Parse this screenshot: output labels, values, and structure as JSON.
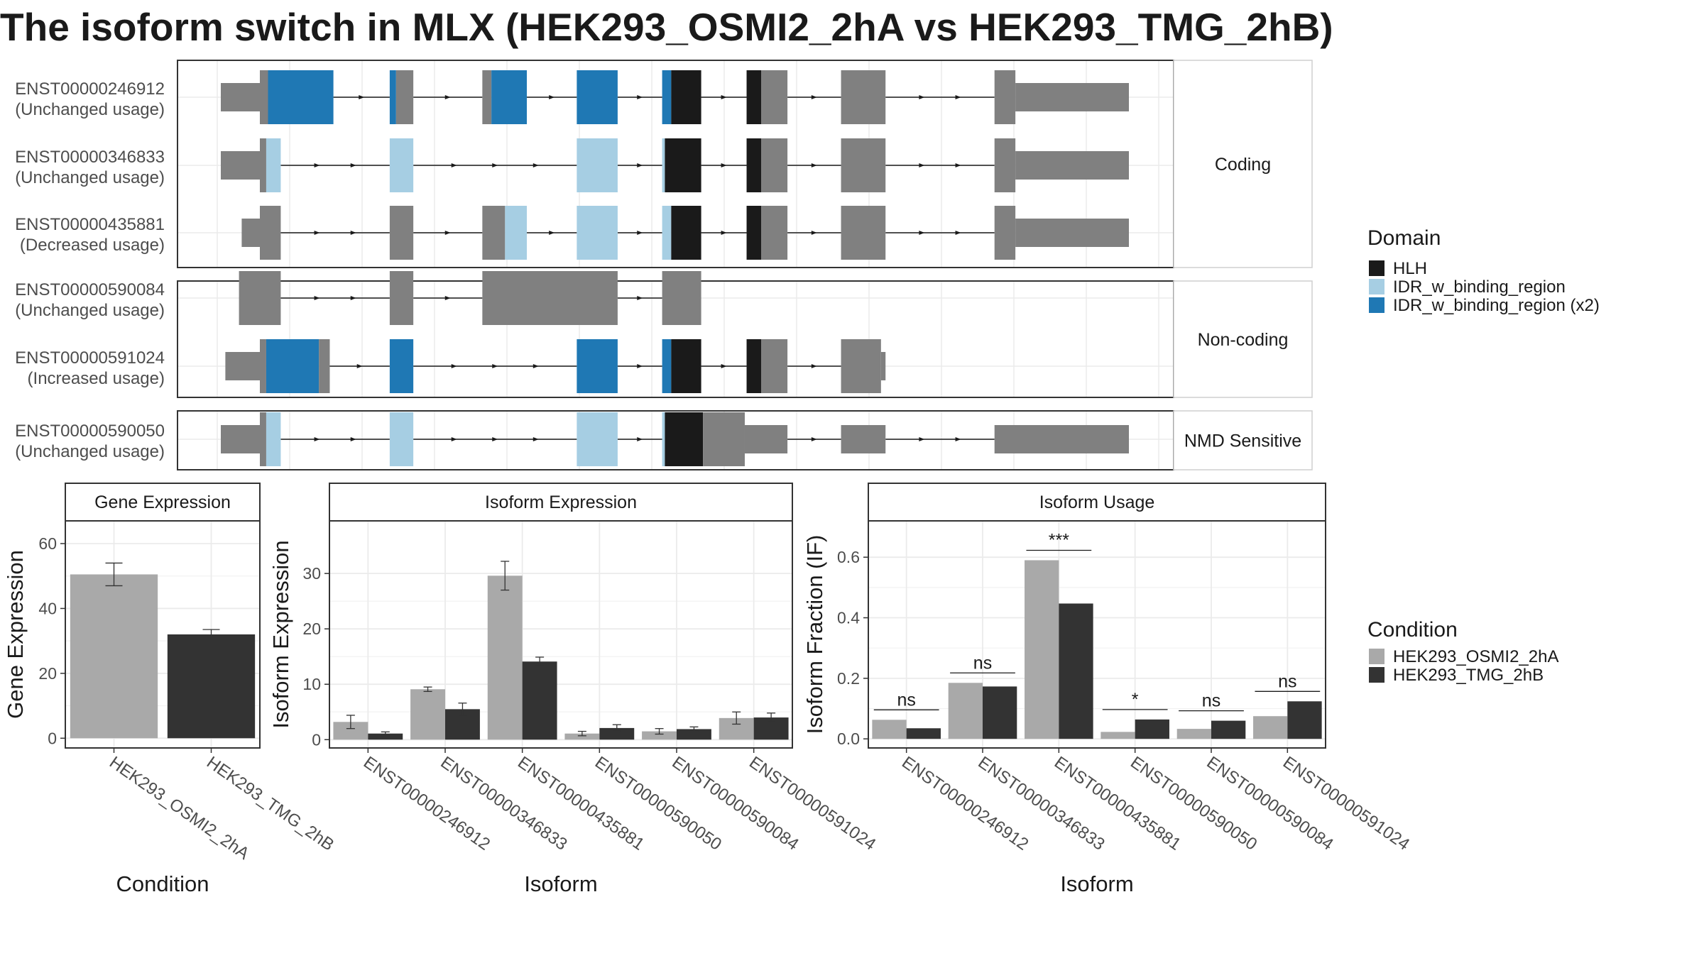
{
  "title": "The isoform switch in MLX (HEK293_OSMI2_2hA vs HEK293_TMG_2hB)",
  "colors": {
    "exon": "#808080",
    "HLH": "#1a1a1a",
    "IDR_w_binding_region": "#a6cee3",
    "IDR_w_binding_region_x2": "#1f78b4",
    "cond_a": "#a9a9a9",
    "cond_b": "#333333",
    "grid": "#ebebeb",
    "panel_border": "#333333"
  },
  "structure": {
    "groups": [
      {
        "label": "Coding",
        "transcripts": [
          {
            "id": "ENST00000246912",
            "usage": "(Unchanged usage)",
            "exons": [
              {
                "x0": 0.0,
                "x1": 0.043,
                "h": "utr"
              },
              {
                "x0": 0.043,
                "x1": 0.052,
                "h": "cds"
              },
              {
                "x0": 0.052,
                "x1": 0.124,
                "h": "cds",
                "d": "x2"
              },
              {
                "x0": 0.186,
                "x1": 0.193,
                "h": "cds",
                "d": "x2"
              },
              {
                "x0": 0.193,
                "x1": 0.212,
                "h": "cds"
              },
              {
                "x0": 0.288,
                "x1": 0.298,
                "h": "cds"
              },
              {
                "x0": 0.298,
                "x1": 0.337,
                "h": "cds",
                "d": "x2"
              },
              {
                "x0": 0.392,
                "x1": 0.437,
                "h": "cds",
                "d": "x2"
              },
              {
                "x0": 0.486,
                "x1": 0.496,
                "h": "cds",
                "d": "x2"
              },
              {
                "x0": 0.496,
                "x1": 0.529,
                "h": "cds",
                "d": "hlh"
              },
              {
                "x0": 0.579,
                "x1": 0.595,
                "h": "cds",
                "d": "hlh"
              },
              {
                "x0": 0.595,
                "x1": 0.624,
                "h": "cds"
              },
              {
                "x0": 0.683,
                "x1": 0.732,
                "h": "cds"
              },
              {
                "x0": 0.852,
                "x1": 0.875,
                "h": "cds"
              },
              {
                "x0": 0.875,
                "x1": 1.0,
                "h": "utr"
              }
            ]
          },
          {
            "id": "ENST00000346833",
            "usage": "(Unchanged usage)",
            "exons": [
              {
                "x0": 0.0,
                "x1": 0.043,
                "h": "utr"
              },
              {
                "x0": 0.043,
                "x1": 0.05,
                "h": "cds"
              },
              {
                "x0": 0.05,
                "x1": 0.066,
                "h": "cds",
                "d": "idr"
              },
              {
                "x0": 0.186,
                "x1": 0.212,
                "h": "cds",
                "d": "idr"
              },
              {
                "x0": 0.392,
                "x1": 0.437,
                "h": "cds",
                "d": "idr"
              },
              {
                "x0": 0.486,
                "x1": 0.489,
                "h": "cds",
                "d": "idr"
              },
              {
                "x0": 0.489,
                "x1": 0.529,
                "h": "cds",
                "d": "hlh"
              },
              {
                "x0": 0.579,
                "x1": 0.595,
                "h": "cds",
                "d": "hlh"
              },
              {
                "x0": 0.595,
                "x1": 0.624,
                "h": "cds"
              },
              {
                "x0": 0.683,
                "x1": 0.732,
                "h": "cds"
              },
              {
                "x0": 0.852,
                "x1": 0.875,
                "h": "cds"
              },
              {
                "x0": 0.875,
                "x1": 1.0,
                "h": "utr"
              }
            ]
          },
          {
            "id": "ENST00000435881",
            "usage": "(Decreased usage)",
            "exons": [
              {
                "x0": 0.023,
                "x1": 0.043,
                "h": "utr"
              },
              {
                "x0": 0.043,
                "x1": 0.066,
                "h": "cds"
              },
              {
                "x0": 0.186,
                "x1": 0.212,
                "h": "cds"
              },
              {
                "x0": 0.288,
                "x1": 0.313,
                "h": "cds"
              },
              {
                "x0": 0.313,
                "x1": 0.337,
                "h": "cds",
                "d": "idr"
              },
              {
                "x0": 0.392,
                "x1": 0.437,
                "h": "cds",
                "d": "idr"
              },
              {
                "x0": 0.486,
                "x1": 0.496,
                "h": "cds",
                "d": "idr"
              },
              {
                "x0": 0.496,
                "x1": 0.529,
                "h": "cds",
                "d": "hlh"
              },
              {
                "x0": 0.579,
                "x1": 0.595,
                "h": "cds",
                "d": "hlh"
              },
              {
                "x0": 0.595,
                "x1": 0.624,
                "h": "cds"
              },
              {
                "x0": 0.683,
                "x1": 0.732,
                "h": "cds"
              },
              {
                "x0": 0.852,
                "x1": 0.875,
                "h": "cds"
              },
              {
                "x0": 0.875,
                "x1": 1.0,
                "h": "utr"
              }
            ]
          }
        ]
      },
      {
        "label": "Non-coding",
        "transcripts": [
          {
            "id": "ENST00000590084",
            "usage": "(Unchanged usage)",
            "exons": [
              {
                "x0": 0.02,
                "x1": 0.066,
                "h": "cds"
              },
              {
                "x0": 0.186,
                "x1": 0.212,
                "h": "cds"
              },
              {
                "x0": 0.288,
                "x1": 0.437,
                "h": "cds"
              },
              {
                "x0": 0.486,
                "x1": 0.529,
                "h": "cds"
              }
            ]
          },
          {
            "id": "ENST00000591024",
            "usage": "(Increased usage)",
            "exons": [
              {
                "x0": 0.005,
                "x1": 0.043,
                "h": "utr"
              },
              {
                "x0": 0.043,
                "x1": 0.05,
                "h": "cds"
              },
              {
                "x0": 0.05,
                "x1": 0.108,
                "h": "cds",
                "d": "x2"
              },
              {
                "x0": 0.108,
                "x1": 0.12,
                "h": "cds"
              },
              {
                "x0": 0.186,
                "x1": 0.212,
                "h": "cds",
                "d": "x2"
              },
              {
                "x0": 0.392,
                "x1": 0.437,
                "h": "cds",
                "d": "x2"
              },
              {
                "x0": 0.486,
                "x1": 0.496,
                "h": "cds",
                "d": "x2"
              },
              {
                "x0": 0.496,
                "x1": 0.529,
                "h": "cds",
                "d": "hlh"
              },
              {
                "x0": 0.579,
                "x1": 0.595,
                "h": "cds",
                "d": "hlh"
              },
              {
                "x0": 0.595,
                "x1": 0.624,
                "h": "cds"
              },
              {
                "x0": 0.683,
                "x1": 0.727,
                "h": "cds"
              },
              {
                "x0": 0.727,
                "x1": 0.732,
                "h": "utr"
              }
            ]
          }
        ]
      },
      {
        "label": "NMD Sensitive",
        "transcripts": [
          {
            "id": "ENST00000590050",
            "usage": "(Unchanged usage)",
            "exons": [
              {
                "x0": 0.0,
                "x1": 0.043,
                "h": "utr"
              },
              {
                "x0": 0.043,
                "x1": 0.05,
                "h": "cds"
              },
              {
                "x0": 0.05,
                "x1": 0.066,
                "h": "cds",
                "d": "idr"
              },
              {
                "x0": 0.186,
                "x1": 0.212,
                "h": "cds",
                "d": "idr"
              },
              {
                "x0": 0.392,
                "x1": 0.437,
                "h": "cds",
                "d": "idr"
              },
              {
                "x0": 0.486,
                "x1": 0.489,
                "h": "cds",
                "d": "idr"
              },
              {
                "x0": 0.489,
                "x1": 0.531,
                "h": "cds",
                "d": "hlh"
              },
              {
                "x0": 0.531,
                "x1": 0.577,
                "h": "cds"
              },
              {
                "x0": 0.577,
                "x1": 0.624,
                "h": "utr"
              },
              {
                "x0": 0.683,
                "x1": 0.732,
                "h": "utr"
              },
              {
                "x0": 0.852,
                "x1": 1.0,
                "h": "utr"
              }
            ]
          }
        ]
      }
    ]
  },
  "legend_domain": {
    "title": "Domain",
    "items": [
      {
        "label": "HLH",
        "color": "#1a1a1a"
      },
      {
        "label": "IDR_w_binding_region",
        "color": "#a6cee3"
      },
      {
        "label": "IDR_w_binding_region (x2)",
        "color": "#1f78b4"
      }
    ]
  },
  "legend_condition": {
    "title": "Condition",
    "items": [
      {
        "label": "HEK293_OSMI2_2hA",
        "color": "#a9a9a9"
      },
      {
        "label": "HEK293_TMG_2hB",
        "color": "#333333"
      }
    ]
  },
  "chart_data": [
    {
      "type": "bar",
      "title": "Gene Expression",
      "xlabel": "Condition",
      "ylabel": "Gene Expression",
      "categories": [
        "HEK293_OSMI2_2hA",
        "HEK293_TMG_2hB"
      ],
      "values": [
        50.5,
        32.0
      ],
      "errors": [
        3.5,
        1.5
      ],
      "ylim": [
        -3,
        67
      ],
      "yticks": [
        0,
        20,
        40,
        60
      ]
    },
    {
      "type": "bar",
      "title": "Isoform Expression",
      "xlabel": "Isoform",
      "ylabel": "Isoform Expression",
      "categories": [
        "ENST00000246912",
        "ENST00000346833",
        "ENST00000435881",
        "ENST00000590050",
        "ENST00000590084",
        "ENST00000591024"
      ],
      "series": [
        {
          "name": "HEK293_OSMI2_2hA",
          "values": [
            3.2,
            9.1,
            29.6,
            1.1,
            1.5,
            3.9
          ],
          "errors": [
            1.2,
            0.4,
            2.6,
            0.4,
            0.5,
            1.1
          ]
        },
        {
          "name": "HEK293_TMG_2hB",
          "values": [
            1.1,
            5.5,
            14.1,
            2.1,
            1.9,
            4.0
          ],
          "errors": [
            0.3,
            1.1,
            0.8,
            0.6,
            0.4,
            0.8
          ]
        }
      ],
      "ylim": [
        -1.5,
        39.5
      ],
      "yticks": [
        0,
        10,
        20,
        30
      ]
    },
    {
      "type": "bar",
      "title": "Isoform Usage",
      "xlabel": "Isoform",
      "ylabel": "Isoform Fraction (IF)",
      "categories": [
        "ENST00000246912",
        "ENST00000346833",
        "ENST00000435881",
        "ENST00000590050",
        "ENST00000590084",
        "ENST00000591024"
      ],
      "series": [
        {
          "name": "HEK293_OSMI2_2hA",
          "values": [
            0.063,
            0.185,
            0.59,
            0.023,
            0.033,
            0.075
          ]
        },
        {
          "name": "HEK293_TMG_2hB",
          "values": [
            0.035,
            0.173,
            0.447,
            0.064,
            0.06,
            0.124
          ]
        }
      ],
      "significance": [
        "ns",
        "ns",
        "***",
        "*",
        "ns",
        "ns"
      ],
      "ylim": [
        -0.03,
        0.72
      ],
      "yticks": [
        0.0,
        0.2,
        0.4,
        0.6
      ],
      "ytick_labels": [
        "0.0",
        "0.2",
        "0.4",
        "0.6"
      ]
    }
  ]
}
